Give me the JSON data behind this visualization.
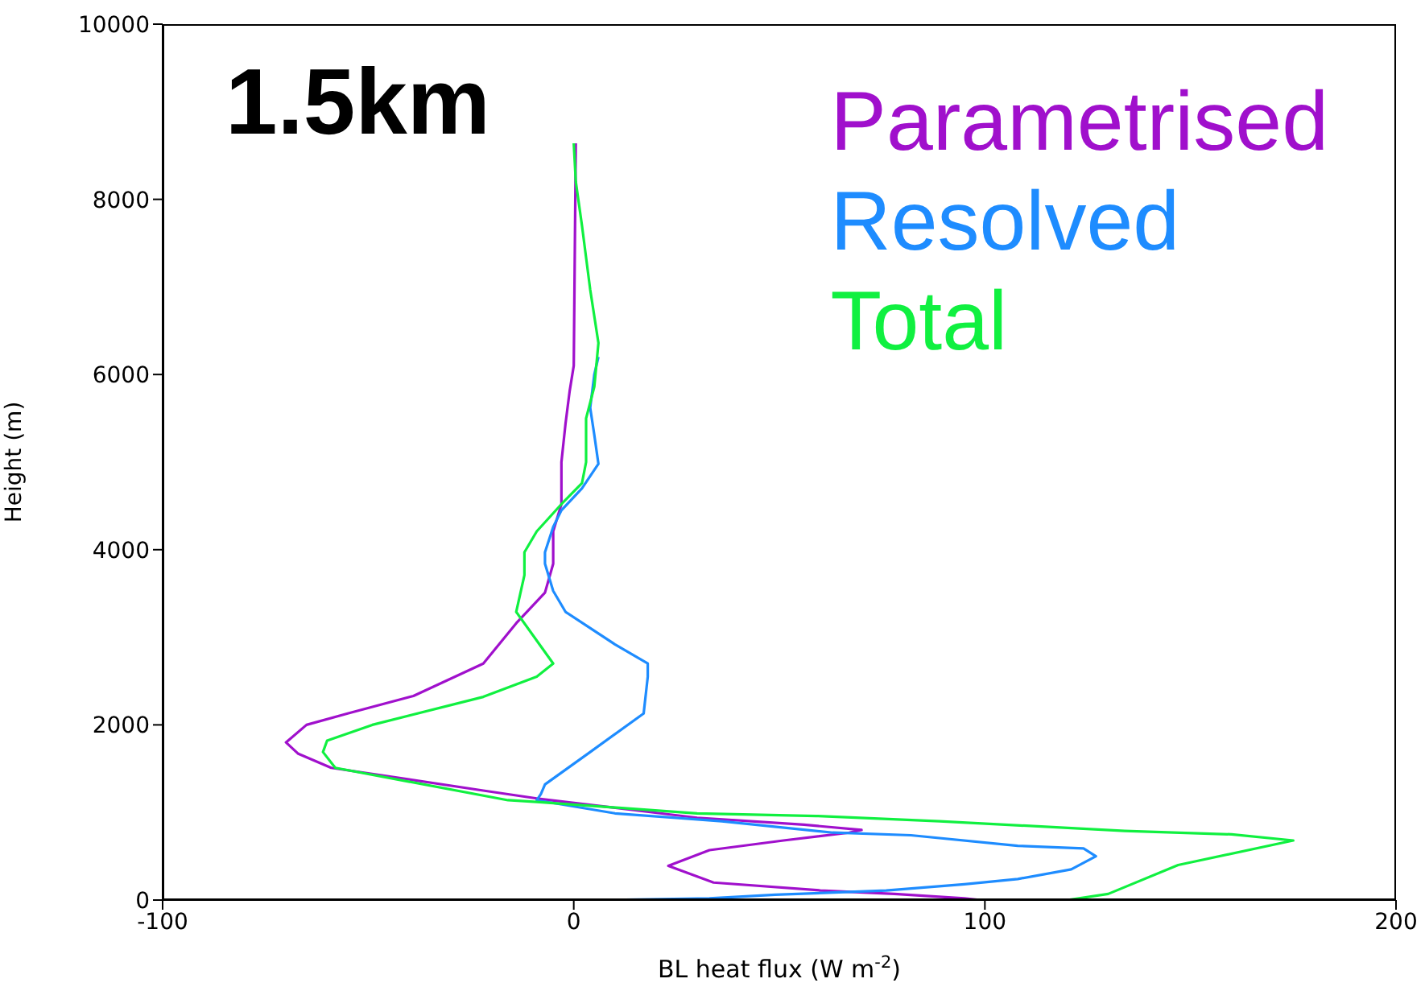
{
  "chart_data": {
    "type": "line",
    "title": "1.5km",
    "xlabel": "BL heat flux (W m$^{-2}$)",
    "ylabel": "Height (m)",
    "xlim": [
      -100,
      200
    ],
    "xticks": [
      -100,
      0,
      100,
      200
    ],
    "ylim": [
      0,
      10000
    ],
    "yticks": [
      0,
      2000,
      4000,
      6000,
      8000,
      10000
    ],
    "legend": "top right",
    "marker": "none",
    "line_style": "solid",
    "series": [
      {
        "name": "Parametrised",
        "color": "#a010cc",
        "x": [
          99,
          95,
          78,
          60,
          34,
          23,
          33,
          51,
          67,
          70,
          56,
          30,
          -9,
          -22,
          -59,
          -67,
          -70,
          -65,
          -55,
          -39,
          -22,
          -14,
          -7,
          -5,
          -5,
          -3,
          -3,
          -2,
          -1,
          0,
          0.5
        ],
        "values": [
          0,
          20,
          70,
          110,
          200,
          390,
          570,
          680,
          770,
          800,
          860,
          940,
          1160,
          1250,
          1510,
          1670,
          1800,
          2000,
          2130,
          2330,
          2700,
          3160,
          3510,
          3840,
          4210,
          4520,
          5000,
          5440,
          5810,
          6100,
          8640
        ]
      },
      {
        "name": "Resolved",
        "color": "#1e8cff",
        "x": [
          7,
          33,
          49,
          76,
          95,
          108,
          121,
          127,
          124,
          108,
          82,
          63,
          36,
          10,
          -9,
          -8,
          -7,
          4,
          17,
          18,
          18,
          10,
          -2,
          -5,
          -7,
          -7,
          -5,
          -3,
          2,
          6,
          5,
          4,
          5,
          6
        ],
        "values": [
          0,
          20,
          60,
          110,
          180,
          240,
          350,
          500,
          590,
          620,
          740,
          770,
          900,
          990,
          1140,
          1210,
          1320,
          1690,
          2130,
          2550,
          2700,
          2920,
          3290,
          3530,
          3840,
          3970,
          4260,
          4450,
          4700,
          4980,
          5310,
          5620,
          6000,
          6200
        ]
      },
      {
        "name": "Total",
        "color": "#10f040",
        "x": [
          107,
          120,
          130,
          147,
          175,
          160,
          134,
          89,
          59,
          30,
          -9,
          -16,
          -58,
          -61,
          -60,
          -49,
          -22,
          -9,
          -5,
          -14,
          -12,
          -12,
          -9,
          -3,
          2,
          3,
          3,
          5,
          6,
          4,
          2,
          0.5,
          0
        ],
        "values": [
          0,
          0,
          70,
          400,
          680,
          750,
          790,
          900,
          960,
          990,
          1120,
          1140,
          1510,
          1690,
          1820,
          2000,
          2320,
          2550,
          2700,
          3290,
          3710,
          3970,
          4210,
          4520,
          4760,
          5000,
          5500,
          5860,
          6360,
          6970,
          7700,
          8200,
          8640
        ]
      }
    ]
  }
}
